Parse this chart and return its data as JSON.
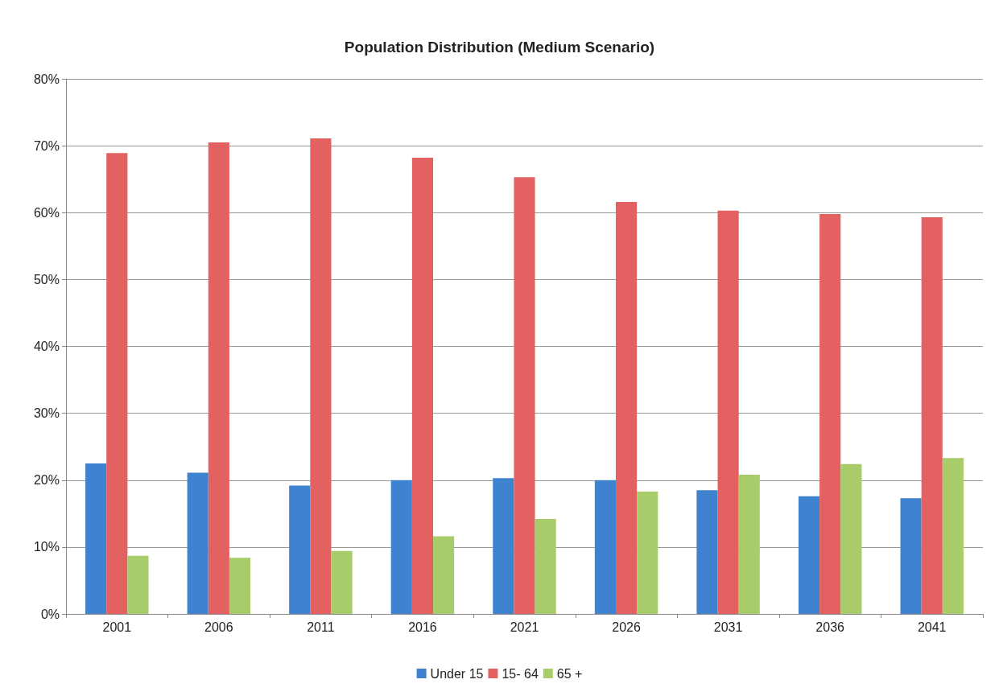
{
  "chart_data": {
    "type": "bar",
    "title": "Population Distribution (Medium Scenario)",
    "categories": [
      "2001",
      "2006",
      "2011",
      "2016",
      "2021",
      "2026",
      "2031",
      "2036",
      "2041"
    ],
    "series": [
      {
        "name": "Under 15",
        "color": "#3f83d0",
        "values": [
          22.5,
          21.1,
          19.2,
          20.0,
          20.3,
          20.0,
          18.5,
          17.6,
          17.3
        ]
      },
      {
        "name": "15- 64",
        "color": "#e46162",
        "values": [
          68.9,
          70.5,
          71.1,
          68.2,
          65.3,
          61.6,
          60.3,
          59.8,
          59.3
        ]
      },
      {
        "name": "65 +",
        "color": "#a9cc6a",
        "values": [
          8.7,
          8.4,
          9.4,
          11.6,
          14.2,
          18.3,
          20.8,
          22.4,
          23.3
        ]
      }
    ],
    "ylim": [
      0,
      80
    ],
    "yticks": [
      {
        "value": 0,
        "label": "0%"
      },
      {
        "value": 10,
        "label": "10%"
      },
      {
        "value": 20,
        "label": "20%"
      },
      {
        "value": 30,
        "label": "30%"
      },
      {
        "value": 40,
        "label": "40%"
      },
      {
        "value": 50,
        "label": "50%"
      },
      {
        "value": 60,
        "label": "60%"
      },
      {
        "value": 70,
        "label": "70%"
      },
      {
        "value": 80,
        "label": "80%"
      }
    ],
    "grid": "y",
    "legend": "bottom"
  }
}
